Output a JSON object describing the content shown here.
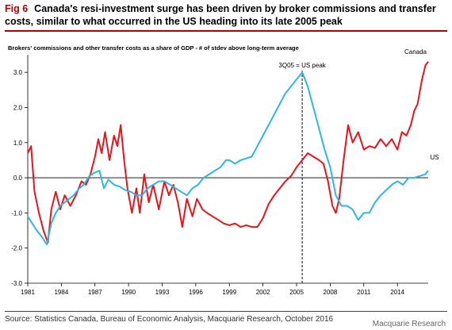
{
  "figure": {
    "label": "Fig 6",
    "title": "Canada's resi-investment surge has been driven by broker commissions and transfer costs, similar to what occurred in the US heading into its late 2005 peak",
    "source": "Source: Statistics Canada, Bureau of Economic Analysis, Macquarie Research, October 2016",
    "brand": "Macquarie Research"
  },
  "colors": {
    "canada": "#e8141b",
    "us": "#2fb6e4",
    "accent": "#b00000"
  },
  "chart_data": {
    "type": "line",
    "title": "Brokers' commissions and other transfer costs as a share of GDP - # of stdev above long-term average",
    "xlabel": "",
    "ylabel": "",
    "xlim": [
      1981,
      2016.75
    ],
    "ylim": [
      -3.0,
      3.5
    ],
    "x_ticks": [
      1981,
      1984,
      1987,
      1990,
      1993,
      1996,
      1999,
      2002,
      2005,
      2008,
      2011,
      2014
    ],
    "x_tick_labels": [
      "1981",
      "1984",
      "1987",
      "1990",
      "1993",
      "1996",
      "1999",
      "2002",
      "2005",
      "2008",
      "2011",
      "2014"
    ],
    "y_ticks": [
      -3.0,
      -2.0,
      -1.0,
      0.0,
      1.0,
      2.0,
      3.0
    ],
    "y_tick_labels": [
      "-3.0",
      "-2.0",
      "-1.0",
      "0.0",
      "1.0",
      "2.0",
      "3.0"
    ],
    "grid": false,
    "annotation": {
      "text": "3Q05 = US peak",
      "x": 2005.5
    },
    "series": [
      {
        "name": "Canada",
        "points": [
          [
            1981.0,
            0.7
          ],
          [
            1981.3,
            0.9
          ],
          [
            1981.6,
            -0.4
          ],
          [
            1982.0,
            -1.0
          ],
          [
            1982.4,
            -1.5
          ],
          [
            1982.8,
            -1.85
          ],
          [
            1983.1,
            -0.9
          ],
          [
            1983.5,
            -0.4
          ],
          [
            1983.9,
            -0.9
          ],
          [
            1984.3,
            -0.5
          ],
          [
            1984.8,
            -0.8
          ],
          [
            1985.3,
            -0.5
          ],
          [
            1985.8,
            -0.1
          ],
          [
            1986.2,
            -0.2
          ],
          [
            1986.6,
            0.1
          ],
          [
            1987.0,
            0.6
          ],
          [
            1987.3,
            1.1
          ],
          [
            1987.6,
            0.7
          ],
          [
            1987.9,
            1.3
          ],
          [
            1988.3,
            0.5
          ],
          [
            1988.7,
            1.2
          ],
          [
            1989.0,
            0.9
          ],
          [
            1989.3,
            1.5
          ],
          [
            1989.6,
            0.5
          ],
          [
            1989.9,
            -0.3
          ],
          [
            1990.3,
            -1.0
          ],
          [
            1990.7,
            -0.3
          ],
          [
            1991.0,
            -1.0
          ],
          [
            1991.4,
            0.1
          ],
          [
            1991.8,
            -0.7
          ],
          [
            1992.2,
            -0.2
          ],
          [
            1992.7,
            -0.9
          ],
          [
            1993.2,
            -0.1
          ],
          [
            1993.6,
            -0.5
          ],
          [
            1994.0,
            -0.2
          ],
          [
            1994.4,
            -0.7
          ],
          [
            1994.8,
            -1.4
          ],
          [
            1995.2,
            -0.6
          ],
          [
            1995.7,
            -1.1
          ],
          [
            1996.1,
            -0.6
          ],
          [
            1996.6,
            -0.9
          ],
          [
            1997.0,
            -1.0
          ],
          [
            1997.5,
            -1.1
          ],
          [
            1998.0,
            -1.2
          ],
          [
            1998.5,
            -1.3
          ],
          [
            1999.0,
            -1.35
          ],
          [
            1999.5,
            -1.3
          ],
          [
            2000.0,
            -1.4
          ],
          [
            2000.5,
            -1.35
          ],
          [
            2001.0,
            -1.4
          ],
          [
            2001.5,
            -1.4
          ],
          [
            2002.0,
            -1.15
          ],
          [
            2002.5,
            -0.75
          ],
          [
            2003.0,
            -0.5
          ],
          [
            2003.5,
            -0.3
          ],
          [
            2004.0,
            -0.1
          ],
          [
            2004.5,
            0.05
          ],
          [
            2005.0,
            0.3
          ],
          [
            2005.5,
            0.5
          ],
          [
            2006.0,
            0.7
          ],
          [
            2006.5,
            0.6
          ],
          [
            2007.0,
            0.5
          ],
          [
            2007.4,
            0.4
          ],
          [
            2007.8,
            -0.1
          ],
          [
            2008.2,
            -0.8
          ],
          [
            2008.5,
            -1.0
          ],
          [
            2008.8,
            -0.6
          ],
          [
            2009.2,
            0.5
          ],
          [
            2009.6,
            1.5
          ],
          [
            2010.0,
            1.0
          ],
          [
            2010.5,
            1.3
          ],
          [
            2011.0,
            0.8
          ],
          [
            2011.5,
            0.9
          ],
          [
            2012.0,
            0.85
          ],
          [
            2012.5,
            1.1
          ],
          [
            2013.0,
            0.9
          ],
          [
            2013.5,
            1.1
          ],
          [
            2014.0,
            0.8
          ],
          [
            2014.4,
            1.3
          ],
          [
            2014.8,
            1.2
          ],
          [
            2015.2,
            1.5
          ],
          [
            2015.5,
            1.9
          ],
          [
            2015.8,
            2.1
          ],
          [
            2016.2,
            2.8
          ],
          [
            2016.5,
            3.2
          ],
          [
            2016.75,
            3.3
          ]
        ]
      },
      {
        "name": "US",
        "points": [
          [
            1981.0,
            -1.1
          ],
          [
            1981.4,
            -1.3
          ],
          [
            1981.8,
            -1.5
          ],
          [
            1982.3,
            -1.7
          ],
          [
            1982.7,
            -1.9
          ],
          [
            1983.1,
            -1.3
          ],
          [
            1983.5,
            -1.0
          ],
          [
            1983.9,
            -0.8
          ],
          [
            1984.3,
            -0.7
          ],
          [
            1984.7,
            -0.6
          ],
          [
            1985.1,
            -0.5
          ],
          [
            1985.6,
            -0.3
          ],
          [
            1986.0,
            -0.2
          ],
          [
            1986.5,
            0.05
          ],
          [
            1987.0,
            0.15
          ],
          [
            1987.4,
            0.2
          ],
          [
            1987.8,
            -0.3
          ],
          [
            1988.2,
            -0.05
          ],
          [
            1988.7,
            -0.2
          ],
          [
            1989.2,
            -0.25
          ],
          [
            1989.7,
            -0.35
          ],
          [
            1990.2,
            -0.4
          ],
          [
            1990.7,
            -0.5
          ],
          [
            1991.2,
            -0.5
          ],
          [
            1991.7,
            -0.3
          ],
          [
            1992.2,
            -0.2
          ],
          [
            1992.7,
            -0.1
          ],
          [
            1993.2,
            -0.1
          ],
          [
            1993.7,
            -0.2
          ],
          [
            1994.2,
            -0.3
          ],
          [
            1994.7,
            -0.4
          ],
          [
            1995.2,
            -0.5
          ],
          [
            1995.7,
            -0.3
          ],
          [
            1996.2,
            -0.2
          ],
          [
            1996.7,
            0.0
          ],
          [
            1997.2,
            0.1
          ],
          [
            1997.7,
            0.2
          ],
          [
            1998.2,
            0.3
          ],
          [
            1998.7,
            0.5
          ],
          [
            1999.0,
            0.5
          ],
          [
            1999.5,
            0.4
          ],
          [
            2000.0,
            0.5
          ],
          [
            2000.5,
            0.55
          ],
          [
            2001.0,
            0.6
          ],
          [
            2001.5,
            0.9
          ],
          [
            2002.0,
            1.2
          ],
          [
            2002.5,
            1.5
          ],
          [
            2003.0,
            1.8
          ],
          [
            2003.5,
            2.1
          ],
          [
            2004.0,
            2.4
          ],
          [
            2004.5,
            2.6
          ],
          [
            2005.0,
            2.8
          ],
          [
            2005.5,
            3.0
          ],
          [
            2006.0,
            2.6
          ],
          [
            2006.5,
            2.0
          ],
          [
            2007.0,
            1.4
          ],
          [
            2007.5,
            0.8
          ],
          [
            2008.0,
            0.3
          ],
          [
            2008.5,
            -0.5
          ],
          [
            2009.0,
            -0.8
          ],
          [
            2009.5,
            -0.8
          ],
          [
            2010.0,
            -0.9
          ],
          [
            2010.5,
            -1.2
          ],
          [
            2011.0,
            -1.0
          ],
          [
            2011.5,
            -1.0
          ],
          [
            2012.0,
            -0.7
          ],
          [
            2012.5,
            -0.5
          ],
          [
            2013.0,
            -0.35
          ],
          [
            2013.5,
            -0.2
          ],
          [
            2014.0,
            -0.1
          ],
          [
            2014.5,
            -0.2
          ],
          [
            2015.0,
            0.0
          ],
          [
            2015.5,
            0.0
          ],
          [
            2016.0,
            0.05
          ],
          [
            2016.5,
            0.1
          ],
          [
            2016.75,
            0.2
          ]
        ]
      }
    ]
  }
}
